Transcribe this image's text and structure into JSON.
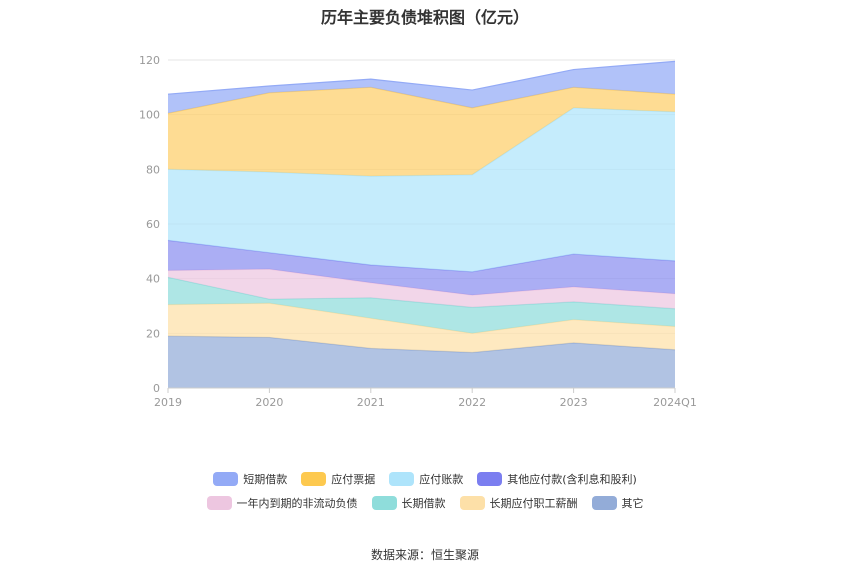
{
  "chart_data": {
    "type": "area",
    "stacked": true,
    "title": "历年主要负债堆积图（亿元）",
    "categories": [
      "2019",
      "2020",
      "2021",
      "2022",
      "2023",
      "2024Q1"
    ],
    "ylim": [
      0,
      120
    ],
    "yticks": [
      0,
      20,
      40,
      60,
      80,
      100,
      120
    ],
    "series": [
      {
        "name": "其它",
        "color": "#93acd8",
        "values": [
          19,
          18.5,
          14.5,
          13,
          16.5,
          14
        ]
      },
      {
        "name": "长期应付职工薪酬",
        "color": "#fde0a8",
        "values": [
          11.5,
          12.5,
          11,
          7,
          8.5,
          8.5
        ]
      },
      {
        "name": "长期借款",
        "color": "#8fdddb",
        "values": [
          10,
          1.5,
          7.5,
          9.5,
          6.5,
          6.5
        ]
      },
      {
        "name": "一年内到期的非流动负债",
        "color": "#edc6e0",
        "values": [
          2.5,
          11,
          5.5,
          4.5,
          5.5,
          5.5
        ]
      },
      {
        "name": "其他应付款(含利息和股利)",
        "color": "#8b8ff0",
        "values": [
          11,
          6,
          6.5,
          8.5,
          12,
          12
        ]
      },
      {
        "name": "应付账款",
        "color": "#aee4fb",
        "values": [
          26,
          29.5,
          32.5,
          35.5,
          53.5,
          54.5
        ]
      },
      {
        "name": "应付票据",
        "color": "#fdcf6a",
        "values": [
          20.5,
          29,
          32.5,
          24.5,
          7.5,
          6.5
        ]
      },
      {
        "name": "短期借款",
        "color": "#93aaf6",
        "values": [
          7,
          2.5,
          3,
          6.5,
          6.5,
          12
        ]
      }
    ]
  },
  "legend": {
    "row1": [
      {
        "label": "短期借款",
        "color": "#93aaf6"
      },
      {
        "label": "应付票据",
        "color": "#fdc94f"
      },
      {
        "label": "应付账款",
        "color": "#aee4fb"
      },
      {
        "label": "其他应付款(含利息和股利)",
        "color": "#7b7ef0"
      }
    ],
    "row2": [
      {
        "label": "一年内到期的非流动负债",
        "color": "#edc6e0"
      },
      {
        "label": "长期借款",
        "color": "#8fdddb"
      },
      {
        "label": "长期应付职工薪酬",
        "color": "#fde0a8"
      },
      {
        "label": "其它",
        "color": "#93acd8"
      }
    ]
  },
  "source": "数据来源：恒生聚源"
}
